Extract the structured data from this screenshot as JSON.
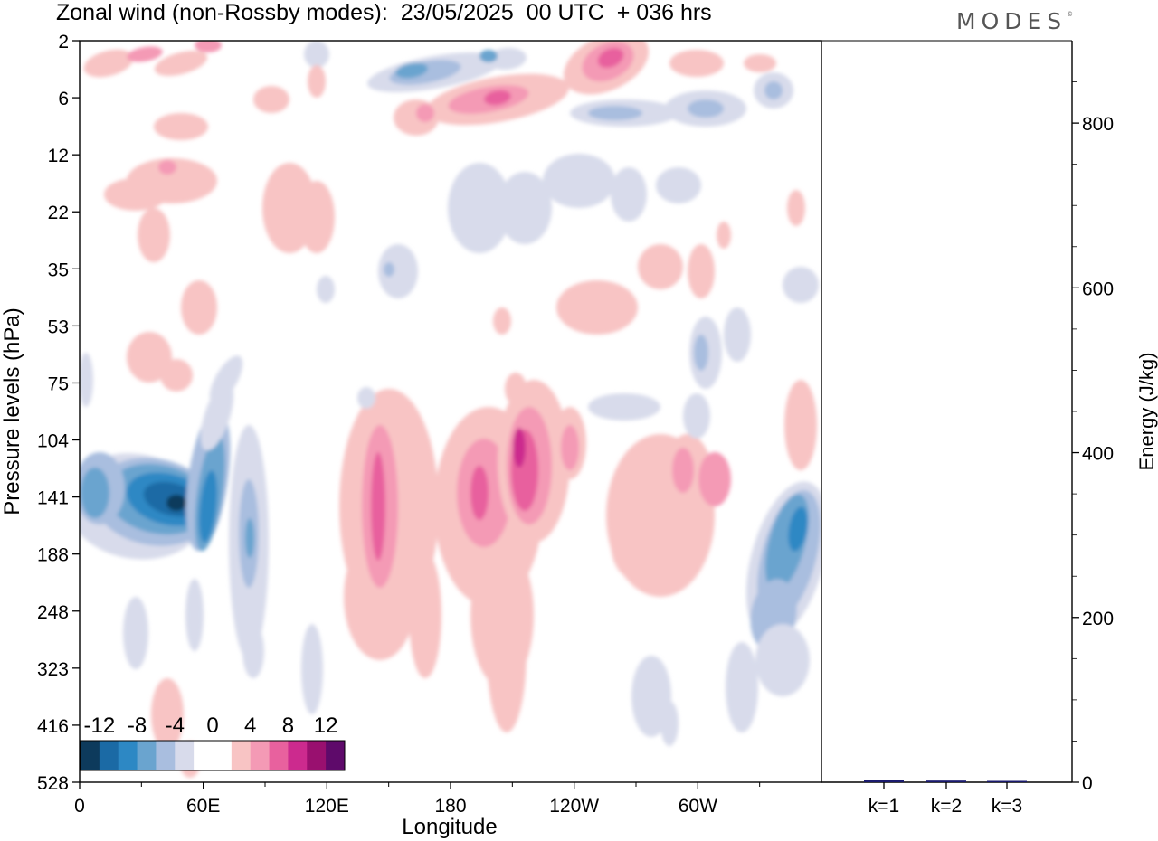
{
  "title": "Zonal wind (non-Rossby modes):  23/05/2025  00 UTC  + 036 hrs",
  "logo": "MODES",
  "logo_mark": "©",
  "colors": {
    "scale": [
      "#0d3a5c",
      "#1b6aa5",
      "#2d88c4",
      "#6aa4cf",
      "#a9bedf",
      "#d8dbeb",
      "#ffffff",
      "#ffffff",
      "#f8c4c4",
      "#f49ab5",
      "#e8619e",
      "#cc2a8e",
      "#99106f",
      "#5e0a6a"
    ],
    "bar": "#1a1a6e"
  },
  "chart_data": [
    {
      "type": "heatmap",
      "title": "Zonal wind (non-Rossby modes):  23/05/2025  00 UTC  + 036 hrs",
      "xlabel": "Longitude",
      "ylabel": "Pressure levels (hPa)",
      "x_ticks": [
        "0",
        "60E",
        "120E",
        "180",
        "120W",
        "60W"
      ],
      "y_ticks": [
        "2",
        "6",
        "12",
        "22",
        "35",
        "53",
        "75",
        "104",
        "141",
        "188",
        "248",
        "323",
        "416",
        "528"
      ],
      "colorbar": {
        "labels": [
          "-12",
          "-8",
          "-4",
          "0",
          "4",
          "8",
          "12"
        ],
        "levels": [
          -14,
          -12,
          -10,
          -8,
          -6,
          -4,
          -2,
          0,
          2,
          4,
          6,
          8,
          10,
          12,
          14
        ]
      },
      "features": [
        {
          "lon": 45,
          "level": "141",
          "value": -14
        },
        {
          "lon": 55,
          "level": "141",
          "value": -10
        },
        {
          "lon": 20,
          "level": "141",
          "value": -8
        },
        {
          "lon": 140,
          "level": "141",
          "value": 6
        },
        {
          "lon": 195,
          "level": "141",
          "value": 6
        },
        {
          "lon": 212,
          "level": "104",
          "value": 10
        },
        {
          "lon": 232,
          "level": "104",
          "value": 6
        },
        {
          "lon": 290,
          "level": "141",
          "value": 4
        },
        {
          "lon": 345,
          "level": "141",
          "value": -6
        },
        {
          "lon": 155,
          "level": "6",
          "value": -6
        },
        {
          "lon": 200,
          "level": "6",
          "value": 8
        },
        {
          "lon": 257,
          "level": "2",
          "value": 10
        },
        {
          "lon": 25,
          "level": "2",
          "value": 4
        }
      ]
    },
    {
      "type": "bar",
      "ylabel": "Energy (J/kg)",
      "categories": [
        "k=1",
        "k=2",
        "k=3"
      ],
      "values": [
        3,
        2,
        1
      ],
      "ylim": [
        0,
        900
      ],
      "y_ticks": [
        "0",
        "200",
        "400",
        "600",
        "800"
      ]
    }
  ]
}
